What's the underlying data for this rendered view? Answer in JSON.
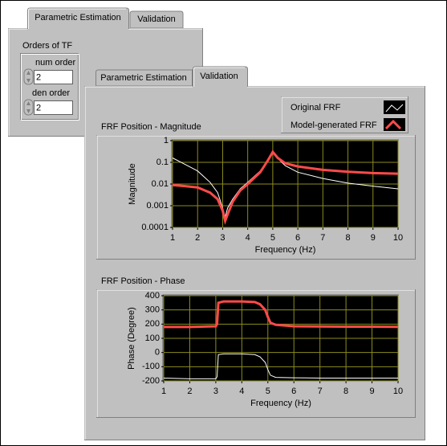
{
  "back_panel": {
    "tabs": [
      "Parametric Estimation",
      "Validation"
    ],
    "group_label": "Orders of TF",
    "fields": [
      {
        "label": "num order",
        "value": "2"
      },
      {
        "label": "den order",
        "value": "2"
      }
    ]
  },
  "front_panel": {
    "tabs": [
      "Parametric Estimation",
      "Validation"
    ]
  },
  "chart_data": [
    {
      "type": "line",
      "title": "FRF Position - Magnitude",
      "x_label": "Frequency (Hz)",
      "y_label": "Magnitude",
      "x": [
        1,
        1.5,
        2,
        2.5,
        2.8,
        3,
        3.1,
        3.2,
        3.4,
        3.7,
        4,
        4.5,
        4.8,
        5,
        5.2,
        5.5,
        6,
        7,
        8,
        9,
        10
      ],
      "series": [
        {
          "name": "Original FRF",
          "color": "#ffffff",
          "values": [
            0.16,
            0.08,
            0.04,
            0.012,
            0.004,
            0.0008,
            0.0003,
            0.0008,
            0.002,
            0.006,
            0.012,
            0.04,
            0.12,
            0.3,
            0.15,
            0.07,
            0.035,
            0.018,
            0.011,
            0.008,
            0.006
          ]
        },
        {
          "name": "Model-generated FRF",
          "color": "#ff4a4a",
          "values": [
            0.009,
            0.008,
            0.007,
            0.004,
            0.002,
            0.0006,
            0.0002,
            0.0004,
            0.0015,
            0.005,
            0.01,
            0.035,
            0.12,
            0.3,
            0.16,
            0.09,
            0.065,
            0.045,
            0.037,
            0.032,
            0.03
          ]
        }
      ],
      "xlim": [
        1,
        10
      ],
      "xticks": [
        1,
        2,
        3,
        4,
        5,
        6,
        7,
        8,
        9,
        10
      ],
      "ylim": [
        0.0001,
        1
      ],
      "yticks": [
        0.0001,
        0.001,
        0.01,
        0.1,
        1
      ],
      "ylog": true,
      "grid": true,
      "grid_color": "#8c8c1e"
    },
    {
      "type": "line",
      "title": "FRF Position - Phase",
      "x_label": "Frequency (Hz)",
      "y_label": "Phase (Degree)",
      "x": [
        1,
        2,
        3,
        3.05,
        3.1,
        3.3,
        4,
        4.5,
        4.7,
        4.9,
        5,
        5.1,
        5.3,
        6,
        7,
        8,
        9,
        10
      ],
      "series": [
        {
          "name": "Original FRF",
          "color": "#ffffff",
          "values": [
            -180,
            -185,
            -185,
            -170,
            -15,
            -10,
            -10,
            -15,
            -30,
            -70,
            -120,
            -160,
            -175,
            -178,
            -180,
            -180,
            -180,
            -180
          ]
        },
        {
          "name": "Model-generated FRF",
          "color": "#ff4a4a",
          "values": [
            180,
            180,
            185,
            200,
            350,
            360,
            360,
            355,
            340,
            300,
            250,
            210,
            195,
            185,
            183,
            182,
            182,
            181
          ]
        }
      ],
      "xlim": [
        1,
        10
      ],
      "xticks": [
        1,
        2,
        3,
        4,
        5,
        6,
        7,
        8,
        9,
        10
      ],
      "ylim": [
        -200,
        400
      ],
      "yticks": [
        -200,
        -100,
        0,
        100,
        200,
        300,
        400
      ],
      "ylog": false,
      "grid": true,
      "grid_color": "#8c8c1e"
    }
  ]
}
